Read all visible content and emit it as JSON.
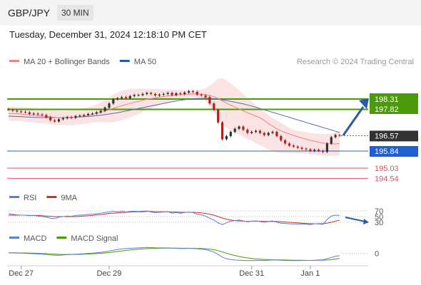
{
  "header": {
    "symbol": "GBP/JPY",
    "timeframe": "30 MIN"
  },
  "datetime": "Tuesday, December 31, 2024 12:18:10 PM CET",
  "colors": {
    "resistance": "#4a9a0a",
    "support": "#1e5fd6",
    "target": "#e05060",
    "price_box": "#333333",
    "bollinger_fill": "#fbe3e3",
    "ma20": "#f08080",
    "ma50": "#5570a8",
    "up_candle": "#333333",
    "down_candle": "#b02020",
    "rsi": "#5b7fd6",
    "rsi_ma": "#d03030",
    "macd": "#5b7fd6",
    "macd_signal": "#4a9a0a",
    "arrow": "#2a5aa8"
  },
  "chart_data": [
    {
      "type": "candlestick",
      "legend": [
        {
          "name": "MA 20 + Bollinger Bands",
          "color": "#f08080"
        },
        {
          "name": "MA 50",
          "color": "#2a5aa8"
        }
      ],
      "credit": "Research © 2024 Trading Central",
      "levels": [
        {
          "value": 198.31,
          "label": "198.31",
          "kind": "resistance"
        },
        {
          "value": 197.82,
          "label": "197.82",
          "kind": "resistance"
        },
        {
          "value": 196.57,
          "label": "196.57",
          "kind": "last"
        },
        {
          "value": 195.84,
          "label": "195.84",
          "kind": "support"
        },
        {
          "value": 195.03,
          "label": "195.03",
          "kind": "target"
        },
        {
          "value": 194.54,
          "label": "194.54",
          "kind": "target"
        }
      ],
      "close": [
        197.8,
        197.76,
        197.72,
        197.7,
        197.68,
        197.6,
        197.62,
        197.58,
        197.55,
        197.45,
        197.3,
        197.25,
        197.35,
        197.4,
        197.45,
        197.42,
        197.5,
        197.52,
        197.55,
        197.6,
        197.62,
        197.68,
        197.75,
        197.9,
        198.1,
        198.3,
        198.35,
        198.4,
        198.35,
        198.45,
        198.5,
        198.5,
        198.55,
        198.6,
        198.55,
        198.48,
        198.52,
        198.55,
        198.6,
        198.5,
        198.58,
        198.55,
        198.62,
        198.68,
        198.65,
        198.52,
        198.48,
        198.4,
        198.1,
        197.8,
        197.2,
        196.4,
        196.55,
        196.75,
        196.9,
        197.0,
        196.85,
        196.7,
        196.75,
        196.8,
        196.7,
        196.6,
        196.7,
        196.75,
        196.55,
        196.35,
        196.2,
        196.1,
        196.05,
        196.0,
        195.95,
        195.92,
        195.85,
        195.9,
        195.85,
        195.8,
        196.2,
        196.5,
        196.6,
        196.57
      ],
      "ma20": [
        197.62,
        197.62,
        197.61,
        197.6,
        197.58,
        197.56,
        197.54,
        197.52,
        197.5,
        197.48,
        197.46,
        197.44,
        197.43,
        197.42,
        197.43,
        197.44,
        197.46,
        197.48,
        197.51,
        197.54,
        197.58,
        197.63,
        197.68,
        197.74,
        197.8,
        197.87,
        197.93,
        197.99,
        198.05,
        198.1,
        198.15,
        198.2,
        198.25,
        198.3,
        198.33,
        198.36,
        198.4,
        198.43,
        198.46,
        198.48,
        198.5,
        198.52,
        198.53,
        198.55,
        198.55,
        198.55,
        198.54,
        198.52,
        198.48,
        198.42,
        198.34,
        198.22,
        198.12,
        198.02,
        197.93,
        197.84,
        197.75,
        197.66,
        197.58,
        197.5,
        197.42,
        197.3,
        197.15,
        197.02,
        196.9,
        196.8,
        196.72,
        196.65,
        196.58,
        196.52,
        196.46,
        196.4,
        196.35,
        196.3,
        196.26,
        196.22,
        196.2,
        196.18,
        196.18,
        196.2
      ],
      "bb_upper": [
        197.95,
        197.95,
        197.94,
        197.93,
        197.92,
        197.9,
        197.88,
        197.86,
        197.84,
        197.82,
        197.8,
        197.78,
        197.77,
        197.76,
        197.78,
        197.8,
        197.82,
        197.85,
        197.88,
        197.92,
        197.97,
        198.05,
        198.15,
        198.28,
        198.4,
        198.52,
        198.62,
        198.7,
        198.75,
        198.78,
        198.8,
        198.8,
        198.8,
        198.8,
        198.8,
        198.78,
        198.78,
        198.77,
        198.76,
        198.75,
        198.75,
        198.74,
        198.74,
        198.74,
        198.74,
        198.75,
        198.78,
        198.82,
        198.95,
        199.1,
        199.28,
        199.3,
        199.2,
        199.05,
        198.88,
        198.72,
        198.55,
        198.38,
        198.2,
        198.02,
        197.85,
        197.7,
        197.55,
        197.42,
        197.3,
        197.18,
        197.06,
        196.95,
        196.86,
        196.8,
        196.76,
        196.73,
        196.7,
        196.68,
        196.66,
        196.65,
        196.65,
        196.68,
        196.72,
        196.78
      ],
      "bb_lower": [
        197.28,
        197.28,
        197.27,
        197.26,
        197.24,
        197.22,
        197.2,
        197.18,
        197.16,
        197.14,
        197.12,
        197.1,
        197.09,
        197.08,
        197.08,
        197.08,
        197.1,
        197.12,
        197.14,
        197.16,
        197.2,
        197.22,
        197.22,
        197.2,
        197.2,
        197.22,
        197.25,
        197.3,
        197.37,
        197.44,
        197.52,
        197.6,
        197.7,
        197.8,
        197.87,
        197.95,
        198.03,
        198.1,
        198.16,
        198.21,
        198.26,
        198.3,
        198.32,
        198.35,
        198.35,
        198.34,
        198.3,
        198.22,
        198.0,
        197.74,
        197.4,
        197.13,
        196.95,
        196.82,
        196.72,
        196.62,
        196.52,
        196.42,
        196.32,
        196.22,
        196.12,
        196.02,
        195.92,
        195.84,
        195.78,
        195.75,
        195.74,
        195.74,
        195.74,
        195.73,
        195.72,
        195.7,
        195.68,
        195.66,
        195.64,
        195.62,
        195.6,
        195.6,
        195.62,
        195.64
      ],
      "ma50": [
        197.5,
        197.49,
        197.48,
        197.47,
        197.46,
        197.45,
        197.44,
        197.44,
        197.43,
        197.43,
        197.43,
        197.43,
        197.43,
        197.43,
        197.44,
        197.44,
        197.45,
        197.46,
        197.47,
        197.48,
        197.5,
        197.52,
        197.54,
        197.57,
        197.6,
        197.63,
        197.66,
        197.7,
        197.74,
        197.78,
        197.82,
        197.86,
        197.9,
        197.94,
        197.98,
        198.02,
        198.06,
        198.1,
        198.14,
        198.18,
        198.22,
        198.25,
        198.28,
        198.3,
        198.32,
        198.33,
        198.34,
        198.35,
        198.34,
        198.33,
        198.3,
        198.27,
        198.24,
        198.2,
        198.16,
        198.12,
        198.08,
        198.03,
        197.98,
        197.92,
        197.86,
        197.8,
        197.74,
        197.68,
        197.62,
        197.56,
        197.5,
        197.44,
        197.38,
        197.32,
        197.26,
        197.2,
        197.14,
        197.08,
        197.02,
        196.96,
        196.9,
        196.84,
        196.78,
        196.72
      ]
    },
    {
      "type": "line",
      "legend": [
        {
          "name": "RSI",
          "color": "#5b7fd6"
        },
        {
          "name": "9MA",
          "color": "#d03030"
        }
      ],
      "levels": [
        70,
        50,
        30
      ],
      "tick_labels": [
        "70",
        "50",
        "30"
      ],
      "ylim": [
        0,
        100
      ],
      "rsi": [
        60,
        58,
        56,
        55,
        55,
        53,
        54,
        52,
        50,
        48,
        44,
        43,
        48,
        50,
        52,
        51,
        54,
        55,
        56,
        58,
        58,
        60,
        62,
        64,
        66,
        68,
        67,
        69,
        66,
        68,
        69,
        68,
        69,
        70,
        66,
        64,
        65,
        66,
        67,
        62,
        64,
        62,
        64,
        66,
        64,
        58,
        56,
        52,
        44,
        38,
        28,
        22,
        28,
        34,
        36,
        38,
        35,
        32,
        34,
        35,
        33,
        30,
        33,
        35,
        30,
        27,
        26,
        25,
        24,
        24,
        24,
        23,
        22,
        25,
        24,
        23,
        40,
        52,
        55,
        54
      ],
      "rsi_ma": [
        55,
        55,
        55,
        55,
        55,
        54,
        54,
        54,
        53,
        52,
        51,
        50,
        50,
        50,
        50,
        50,
        50,
        51,
        52,
        53,
        54,
        56,
        57,
        59,
        61,
        62,
        63,
        64,
        65,
        66,
        67,
        67,
        67,
        68,
        68,
        67,
        67,
        67,
        67,
        66,
        66,
        65,
        65,
        65,
        65,
        64,
        63,
        61,
        58,
        55,
        50,
        45,
        41,
        38,
        36,
        35,
        34,
        33,
        34,
        34,
        34,
        33,
        33,
        33,
        33,
        32,
        31,
        30,
        29,
        28,
        27,
        26,
        25,
        25,
        25,
        25,
        27,
        30,
        34,
        38
      ]
    },
    {
      "type": "line",
      "legend": [
        {
          "name": "MACD",
          "color": "#5b7fd6"
        },
        {
          "name": "MACD Signal",
          "color": "#4a9a0a"
        }
      ],
      "zero_label": "0",
      "ylim": [
        -1.1,
        0.85
      ],
      "macd": [
        0.05,
        0.04,
        0.03,
        0.02,
        0.0,
        -0.02,
        -0.03,
        -0.05,
        -0.07,
        -0.1,
        -0.15,
        -0.18,
        -0.17,
        -0.15,
        -0.12,
        -0.1,
        -0.08,
        -0.05,
        -0.03,
        0.0,
        0.03,
        0.06,
        0.1,
        0.15,
        0.22,
        0.3,
        0.36,
        0.42,
        0.45,
        0.48,
        0.5,
        0.52,
        0.54,
        0.56,
        0.55,
        0.53,
        0.52,
        0.52,
        0.52,
        0.5,
        0.49,
        0.47,
        0.47,
        0.48,
        0.47,
        0.44,
        0.4,
        0.35,
        0.25,
        0.12,
        -0.1,
        -0.35,
        -0.5,
        -0.58,
        -0.62,
        -0.64,
        -0.66,
        -0.68,
        -0.68,
        -0.67,
        -0.66,
        -0.66,
        -0.64,
        -0.62,
        -0.62,
        -0.64,
        -0.66,
        -0.67,
        -0.68,
        -0.68,
        -0.67,
        -0.66,
        -0.66,
        -0.64,
        -0.62,
        -0.6,
        -0.5,
        -0.38,
        -0.28,
        -0.22
      ],
      "macd_signal": [
        0.06,
        0.06,
        0.05,
        0.04,
        0.04,
        0.03,
        0.02,
        0.0,
        -0.01,
        -0.03,
        -0.05,
        -0.07,
        -0.09,
        -0.1,
        -0.1,
        -0.1,
        -0.1,
        -0.09,
        -0.08,
        -0.06,
        -0.04,
        -0.02,
        0.01,
        0.04,
        0.08,
        0.13,
        0.18,
        0.23,
        0.28,
        0.32,
        0.36,
        0.39,
        0.42,
        0.45,
        0.47,
        0.48,
        0.49,
        0.5,
        0.5,
        0.5,
        0.5,
        0.49,
        0.49,
        0.49,
        0.48,
        0.47,
        0.46,
        0.44,
        0.4,
        0.35,
        0.26,
        0.14,
        0.02,
        -0.1,
        -0.2,
        -0.29,
        -0.37,
        -0.43,
        -0.48,
        -0.52,
        -0.55,
        -0.57,
        -0.59,
        -0.6,
        -0.6,
        -0.61,
        -0.62,
        -0.63,
        -0.64,
        -0.65,
        -0.65,
        -0.66,
        -0.66,
        -0.66,
        -0.65,
        -0.64,
        -0.62,
        -0.58,
        -0.53,
        -0.48
      ]
    }
  ],
  "xaxis": {
    "tick_labels": [
      "Dec 27",
      "Dec 29",
      "Dec 31",
      "Jan 1"
    ],
    "tick_index": [
      3,
      24,
      58,
      72
    ]
  }
}
